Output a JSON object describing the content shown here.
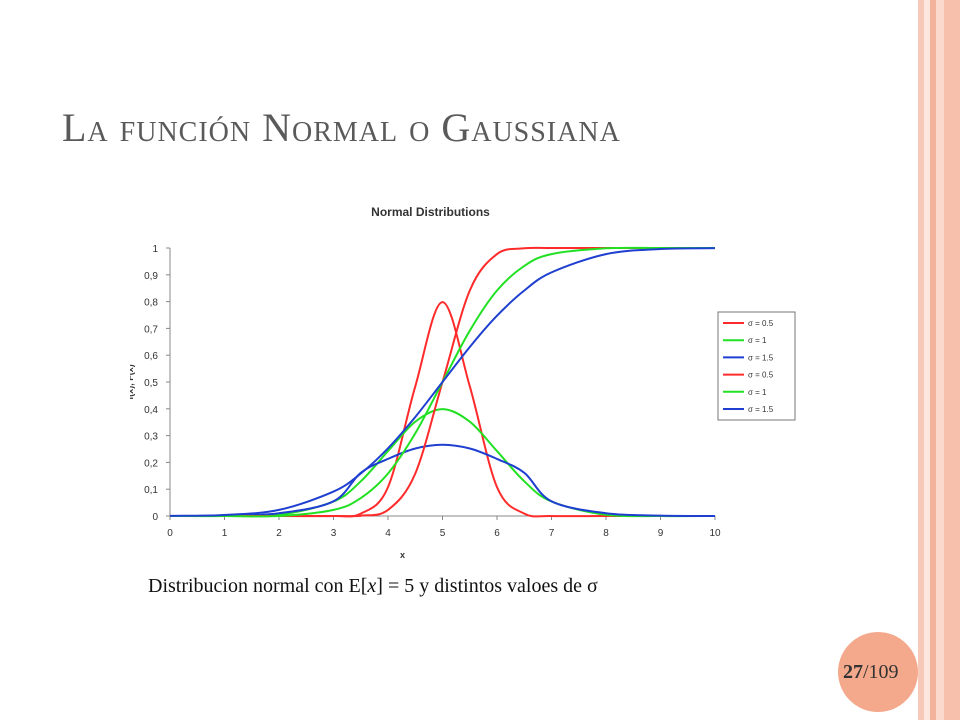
{
  "slide": {
    "title": "La función Normal o Gaussiana",
    "caption_before": "Distribucion normal con E[",
    "caption_var": "x",
    "caption_after": "] = 5 y distintos valoes de σ",
    "page_current": "27",
    "page_total": "/109"
  },
  "colors": {
    "red": "#ff2b2b",
    "green": "#22e022",
    "blue": "#1f3fd0",
    "accent": "#f4a98c",
    "title": "#5a5a5a"
  },
  "chart_data": {
    "type": "line",
    "title": "Normal Distributions",
    "xlabel": "x",
    "ylabel": "f(x), F(x)",
    "xlim": [
      0,
      10
    ],
    "ylim": [
      0,
      1
    ],
    "xticks": [
      "0",
      "1",
      "2",
      "3",
      "4",
      "5",
      "6",
      "7",
      "8",
      "9",
      "10"
    ],
    "yticks": [
      "0",
      "0,1",
      "0,2",
      "0,3",
      "0,4",
      "0,5",
      "0,6",
      "0,7",
      "0,8",
      "0,9",
      "1"
    ],
    "legend_position": "right",
    "legend": [
      "σ = 0.5",
      "σ = 1",
      "σ = 1.5",
      "σ = 0.5",
      "σ = 1",
      "σ = 1.5"
    ],
    "x": [
      0,
      1,
      2,
      3,
      3.5,
      4,
      4.5,
      5,
      5.5,
      6,
      6.5,
      7,
      8,
      9,
      10
    ],
    "series": [
      {
        "name": "σ = 0.5",
        "kind": "pdf",
        "color": "#ff2b2b",
        "values": [
          0,
          0,
          0,
          0.0001,
          0.0089,
          0.108,
          0.484,
          0.798,
          0.484,
          0.108,
          0.0089,
          0.0001,
          0,
          0,
          0
        ]
      },
      {
        "name": "σ = 1",
        "kind": "pdf",
        "color": "#22e022",
        "values": [
          0,
          0.0001,
          0.0044,
          0.054,
          0.1295,
          0.242,
          0.352,
          0.399,
          0.352,
          0.242,
          0.1295,
          0.054,
          0.0044,
          0.0001,
          0
        ]
      },
      {
        "name": "σ = 1.5",
        "kind": "pdf",
        "color": "#1f3fd0",
        "values": [
          0.0001,
          0.0015,
          0.0103,
          0.0547,
          0.1613,
          0.213,
          0.252,
          0.266,
          0.252,
          0.213,
          0.1613,
          0.0547,
          0.0103,
          0.0015,
          0.0001
        ]
      },
      {
        "name": "σ = 0.5",
        "kind": "cdf",
        "color": "#ff2b2b",
        "values": [
          0,
          0,
          0,
          0,
          0.0013,
          0.0228,
          0.1587,
          0.5,
          0.8413,
          0.9772,
          0.9987,
          1,
          1,
          1,
          1
        ]
      },
      {
        "name": "σ = 1",
        "kind": "cdf",
        "color": "#22e022",
        "values": [
          0,
          0,
          0,
          0.0228,
          0.0668,
          0.1587,
          0.3085,
          0.5,
          0.6915,
          0.8413,
          0.9332,
          0.9772,
          0.9987,
          1,
          1
        ]
      },
      {
        "name": "σ = 1.5",
        "kind": "cdf",
        "color": "#1f3fd0",
        "values": [
          0.0004,
          0.0038,
          0.0228,
          0.0912,
          0.1587,
          0.2525,
          0.3694,
          0.5,
          0.6306,
          0.7475,
          0.8413,
          0.9088,
          0.9772,
          0.9962,
          0.9996
        ]
      }
    ]
  }
}
